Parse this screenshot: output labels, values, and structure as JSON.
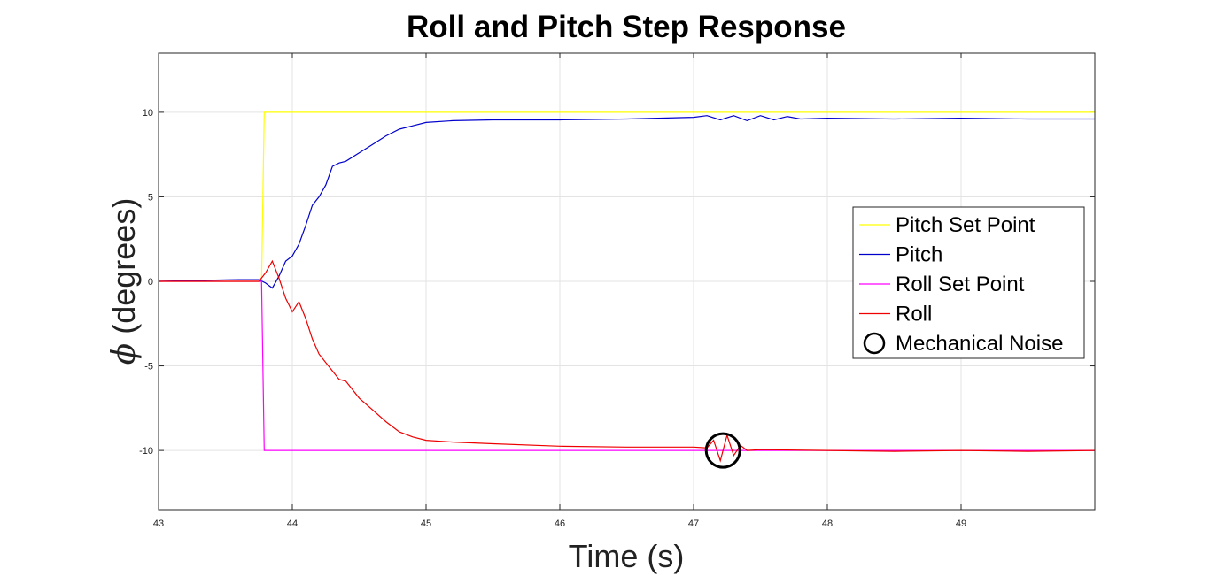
{
  "chart_data": {
    "type": "line",
    "title": "Roll and Pitch Step Response",
    "xlabel": "Time (s)",
    "ylabel_symbol": "ϕ",
    "ylabel_text": " (degrees)",
    "xlim": [
      43,
      50
    ],
    "ylim": [
      -13.5,
      13.5
    ],
    "xticks": [
      43,
      44,
      45,
      46,
      47,
      48,
      49
    ],
    "yticks": [
      -10,
      -5,
      0,
      5,
      10
    ],
    "grid": true,
    "legend_position": "center-right",
    "series": [
      {
        "name": "Pitch Set Point",
        "color": "#ffff00",
        "x": [
          43,
          43.77,
          43.79,
          50
        ],
        "y": [
          0,
          0,
          10,
          10
        ]
      },
      {
        "name": "Pitch",
        "color": "#0000cc",
        "x": [
          43,
          43.3,
          43.6,
          43.75,
          43.8,
          43.85,
          43.9,
          43.95,
          44.0,
          44.05,
          44.1,
          44.15,
          44.2,
          44.25,
          44.3,
          44.35,
          44.4,
          44.5,
          44.6,
          44.7,
          44.8,
          44.9,
          45.0,
          45.2,
          45.5,
          46.0,
          46.5,
          47.0,
          47.1,
          47.2,
          47.3,
          47.4,
          47.5,
          47.6,
          47.7,
          47.8,
          48.0,
          48.5,
          49.0,
          49.5,
          50.0
        ],
        "y": [
          0,
          0.05,
          0.1,
          0.1,
          -0.1,
          -0.4,
          0.3,
          1.2,
          1.5,
          2.2,
          3.3,
          4.5,
          5.0,
          5.7,
          6.8,
          7.0,
          7.1,
          7.6,
          8.1,
          8.6,
          9.0,
          9.2,
          9.4,
          9.5,
          9.55,
          9.55,
          9.6,
          9.7,
          9.8,
          9.55,
          9.8,
          9.5,
          9.8,
          9.55,
          9.75,
          9.6,
          9.65,
          9.6,
          9.65,
          9.6,
          9.6
        ]
      },
      {
        "name": "Roll Set Point",
        "color": "#ff00ff",
        "x": [
          43,
          43.77,
          43.79,
          50
        ],
        "y": [
          0,
          0,
          -10,
          -10
        ]
      },
      {
        "name": "Roll",
        "color": "#ee0000",
        "x": [
          43,
          43.3,
          43.6,
          43.75,
          43.8,
          43.85,
          43.9,
          43.95,
          44.0,
          44.05,
          44.1,
          44.15,
          44.2,
          44.3,
          44.35,
          44.4,
          44.5,
          44.6,
          44.7,
          44.8,
          44.9,
          45.0,
          45.2,
          45.5,
          46.0,
          46.5,
          47.0,
          47.1,
          47.15,
          47.2,
          47.25,
          47.3,
          47.35,
          47.4,
          47.5,
          48.0,
          48.5,
          49.0,
          49.5,
          50.0
        ],
        "y": [
          0,
          0,
          0,
          0,
          0.5,
          1.2,
          0.2,
          -1.0,
          -1.8,
          -1.2,
          -2.2,
          -3.4,
          -4.3,
          -5.3,
          -5.8,
          -5.9,
          -6.9,
          -7.6,
          -8.3,
          -8.9,
          -9.2,
          -9.4,
          -9.5,
          -9.6,
          -9.75,
          -9.8,
          -9.8,
          -9.85,
          -9.4,
          -10.6,
          -9.1,
          -10.3,
          -9.7,
          -10.0,
          -9.95,
          -10.0,
          -10.05,
          -10.0,
          -10.05,
          -10.0
        ]
      }
    ],
    "annotations": [
      {
        "name": "Mechanical Noise",
        "marker": "circle",
        "x": 47.22,
        "y": -10
      }
    ]
  }
}
